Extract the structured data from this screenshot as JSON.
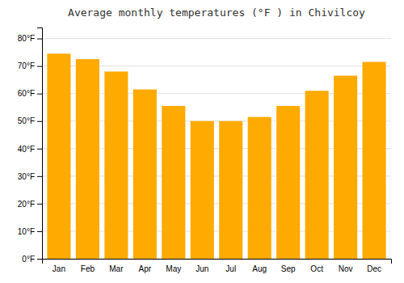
{
  "chart_data": {
    "type": "bar",
    "title": "Average monthly temperatures (°F ) in Chivilcoy",
    "categories": [
      "Jan",
      "Feb",
      "Mar",
      "Apr",
      "May",
      "Jun",
      "Jul",
      "Aug",
      "Sep",
      "Oct",
      "Nov",
      "Dec"
    ],
    "values": [
      74.5,
      72.5,
      68,
      61.5,
      55.5,
      50,
      50,
      51.5,
      55.5,
      61,
      66.5,
      71.5
    ],
    "color": "#FFAA00",
    "ylim": [
      0,
      84
    ],
    "yticks": [
      {
        "value": 0,
        "label": "0°F"
      },
      {
        "value": 10,
        "label": "10°F"
      },
      {
        "value": 20,
        "label": "20°F"
      },
      {
        "value": 30,
        "label": "30°F"
      },
      {
        "value": 40,
        "label": "40°F"
      },
      {
        "value": 50,
        "label": "50°F"
      },
      {
        "value": 60,
        "label": "60°F"
      },
      {
        "value": 70,
        "label": "70°F"
      },
      {
        "value": 80,
        "label": "80°F"
      }
    ],
    "grid": true
  }
}
